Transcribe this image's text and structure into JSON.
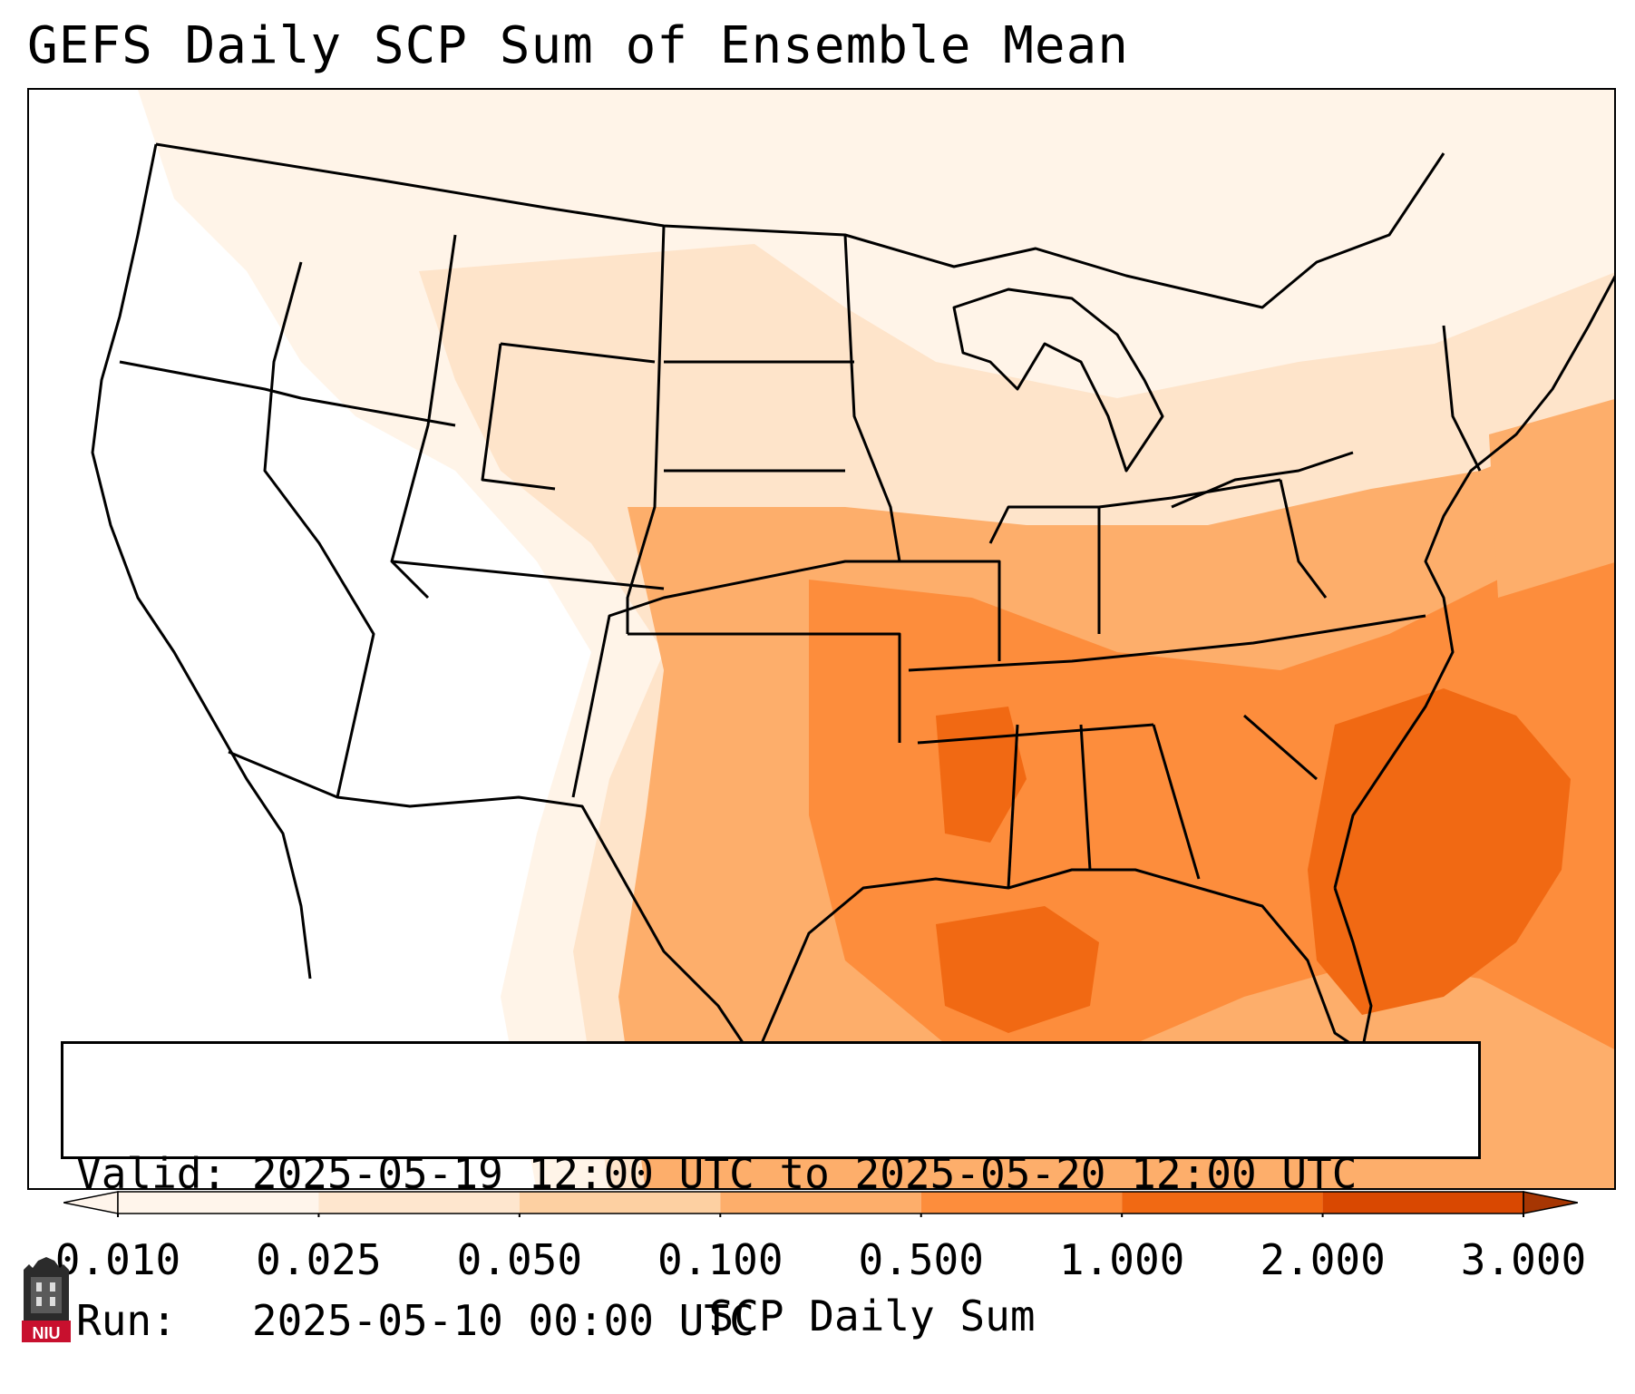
{
  "title": "GEFS Daily SCP Sum of Ensemble Mean",
  "info": {
    "valid_label": "Valid:",
    "valid_value": "2025-05-19 12:00 UTC to 2025-05-20 12:00 UTC",
    "run_label": "Run:",
    "run_value": "2025-05-10 00:00 UTC"
  },
  "colorbar": {
    "label": "SCP Daily Sum",
    "ticks": [
      "0.010",
      "0.025",
      "0.050",
      "0.100",
      "0.500",
      "1.000",
      "2.000",
      "3.000"
    ],
    "colors": [
      "#fff5eb",
      "#fee6ce",
      "#fdd0a2",
      "#fdae6b",
      "#fd8d3c",
      "#f16913",
      "#d94801",
      "#a63603"
    ],
    "extend": "both"
  },
  "logo": {
    "text": "NIU",
    "icon": "niu-logo-icon"
  },
  "map": {
    "region": "Continental United States",
    "features": [
      "state-borders",
      "coastlines",
      "great-lakes"
    ],
    "colors": {
      "border": "#000000",
      "ocean_bg": "#ffffff"
    }
  }
}
